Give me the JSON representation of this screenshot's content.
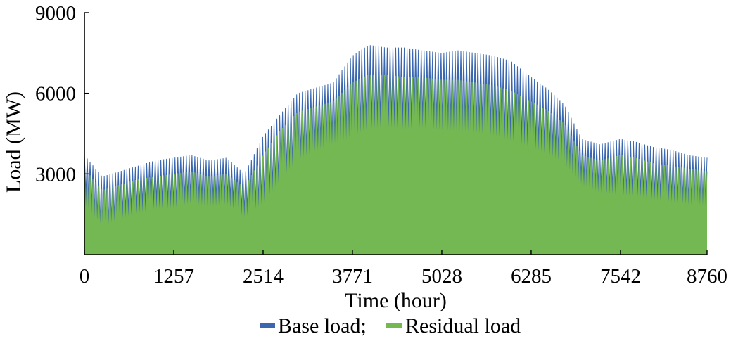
{
  "chart_data": {
    "type": "area",
    "title": "",
    "xlabel": "Time (hour)",
    "ylabel": "Load (MW)",
    "xlim": [
      0,
      8760
    ],
    "ylim": [
      0,
      9000
    ],
    "x_ticks": [
      0,
      1257,
      2514,
      3771,
      5028,
      6285,
      7542,
      8760
    ],
    "y_ticks": [
      3000,
      6000,
      9000
    ],
    "grid": false,
    "legend_position": "bottom-center",
    "colors": {
      "base": "#3a67b0",
      "residual": "#74b853",
      "axis": "#000000"
    },
    "series": [
      {
        "name": "Base load;",
        "x": [
          0,
          250,
          500,
          750,
          1000,
          1257,
          1500,
          1750,
          2000,
          2250,
          2514,
          2750,
          3000,
          3250,
          3500,
          3771,
          4000,
          4250,
          4500,
          4750,
          5028,
          5250,
          5500,
          5750,
          6000,
          6285,
          6500,
          6750,
          7000,
          7250,
          7542,
          7750,
          8000,
          8250,
          8500,
          8760
        ],
        "upper": [
          3700,
          2900,
          3100,
          3300,
          3500,
          3600,
          3700,
          3500,
          3600,
          3000,
          4400,
          5200,
          6000,
          6200,
          6400,
          7400,
          7800,
          7700,
          7700,
          7600,
          7500,
          7600,
          7500,
          7400,
          7200,
          6600,
          6200,
          5600,
          4300,
          4100,
          4300,
          4200,
          4000,
          3900,
          3700,
          3600
        ],
        "lower": [
          2400,
          1000,
          1500,
          1800,
          2000,
          1900,
          2200,
          2000,
          2200,
          1600,
          2000,
          2800,
          3600,
          4100,
          4400,
          4600,
          4900,
          5000,
          4900,
          5000,
          4900,
          4900,
          4800,
          4700,
          4400,
          4200,
          4000,
          3700,
          2800,
          2500,
          2300,
          2300,
          2200,
          2100,
          2000,
          2000
        ]
      },
      {
        "name": "Residual load",
        "x": [
          0,
          250,
          500,
          750,
          1000,
          1257,
          1500,
          1750,
          2000,
          2250,
          2514,
          2750,
          3000,
          3250,
          3500,
          3771,
          4000,
          4250,
          4500,
          4750,
          5028,
          5250,
          5500,
          5750,
          6000,
          6285,
          6500,
          6750,
          7000,
          7250,
          7542,
          7750,
          8000,
          8250,
          8500,
          8760
        ],
        "upper": [
          3200,
          2400,
          2600,
          2800,
          2900,
          3000,
          3100,
          2900,
          3000,
          2500,
          3700,
          4600,
          5300,
          5500,
          5700,
          6400,
          6700,
          6700,
          6600,
          6600,
          6500,
          6500,
          6400,
          6300,
          6100,
          5700,
          5400,
          4900,
          3700,
          3500,
          3700,
          3600,
          3400,
          3300,
          3200,
          3100
        ],
        "lower": [
          1400,
          600,
          900,
          1100,
          1300,
          1300,
          1500,
          1400,
          1500,
          1000,
          1300,
          2100,
          2900,
          3300,
          3600,
          3700,
          4000,
          4100,
          4000,
          4100,
          4000,
          4000,
          3900,
          3800,
          3600,
          3400,
          3200,
          2900,
          2200,
          1900,
          1700,
          1700,
          1600,
          1500,
          1400,
          1400
        ]
      }
    ]
  }
}
